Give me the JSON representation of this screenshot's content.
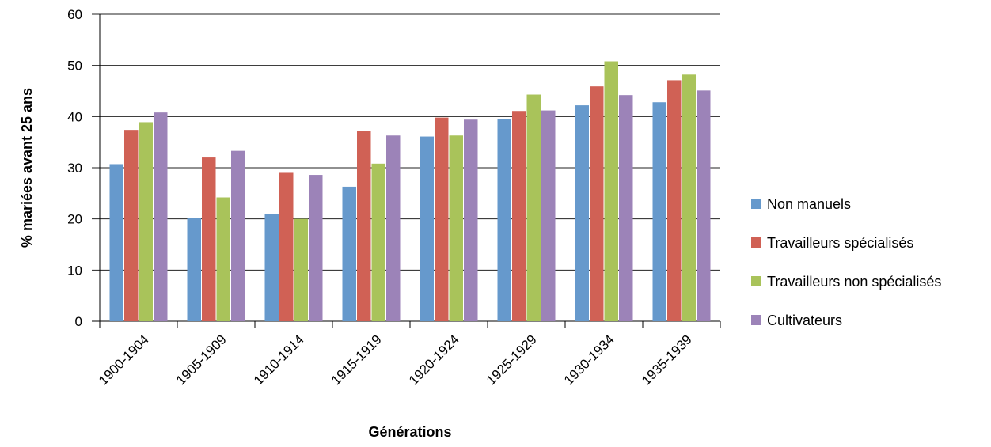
{
  "chart_data": {
    "type": "bar",
    "title": "",
    "xlabel": "Générations",
    "ylabel": "% mariées avant 25 ans",
    "ylim": [
      0,
      60
    ],
    "yticks": [
      "0",
      "10",
      "20",
      "30",
      "40",
      "50",
      "60"
    ],
    "grid": true,
    "legend_position": "right",
    "categories": [
      "1900-1904",
      "1905-1909",
      "1910-1914",
      "1915-1919",
      "1920-1924",
      "1925-1929",
      "1930-1934",
      "1935-1939"
    ],
    "series": [
      {
        "name": "Non manuels",
        "color": "#6699CC",
        "values": [
          30.7,
          20.1,
          21.0,
          26.3,
          36.1,
          39.5,
          42.2,
          42.8
        ]
      },
      {
        "name": "Travailleurs spécialisés",
        "color": "#D06155",
        "values": [
          37.4,
          32.0,
          29.0,
          37.2,
          39.8,
          41.1,
          45.9,
          47.1
        ]
      },
      {
        "name": "Travailleurs non spécialisés",
        "color": "#A9C35A",
        "values": [
          38.9,
          24.2,
          20.0,
          30.8,
          36.3,
          44.3,
          50.8,
          48.2
        ]
      },
      {
        "name": "Cultivateurs",
        "color": "#9C83B8",
        "values": [
          40.8,
          33.3,
          28.6,
          36.3,
          39.4,
          41.2,
          44.2,
          45.1
        ]
      }
    ]
  }
}
